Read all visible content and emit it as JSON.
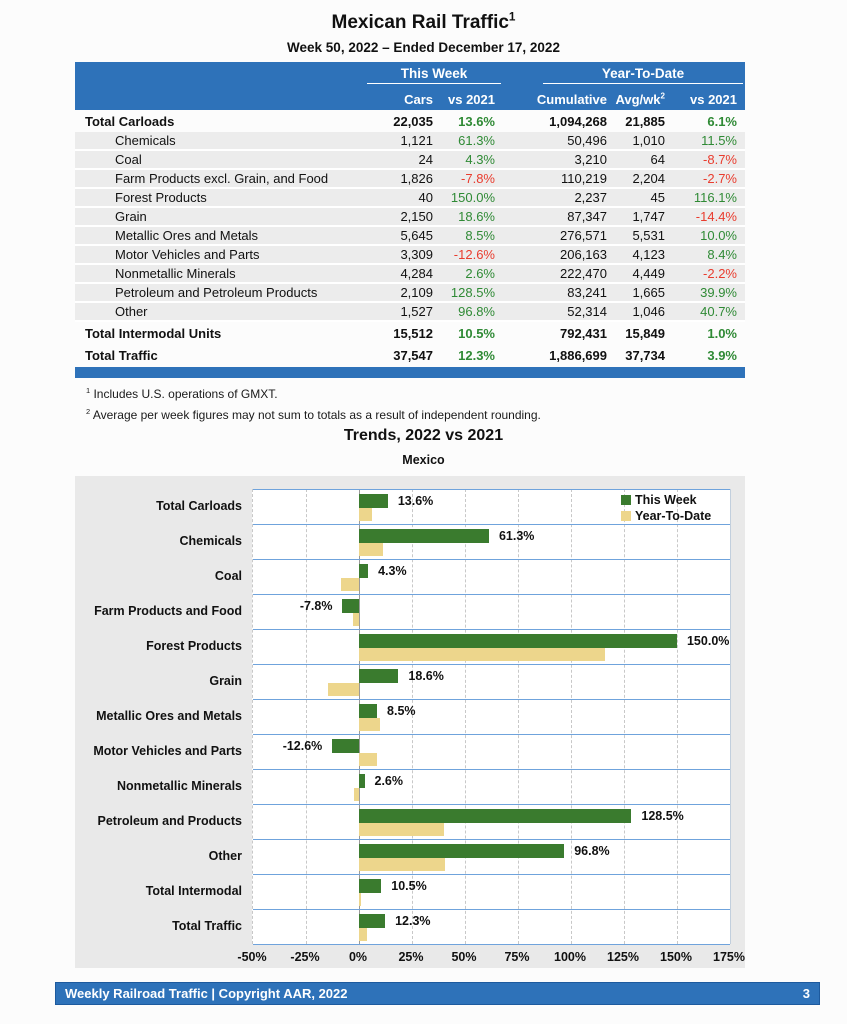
{
  "page": {
    "title": "Mexican Rail Traffic",
    "title_superscript": "1",
    "subtitle": "Week 50, 2022 – Ended December 17, 2022"
  },
  "theme": {
    "blue": "#2E72B9",
    "separator_blue": "#6FA3DC",
    "bar_green": "#3A7B2E",
    "bar_tan": "#EDD68C",
    "green_text": "#2F8A35",
    "red_text": "#E93C2E",
    "row_gray": "#ECECEC",
    "panel_gray": "#E9E9E9"
  },
  "table": {
    "group_headers": {
      "this_week": "This Week",
      "ytd": "Year-To-Date"
    },
    "col_headers": {
      "cars": "Cars",
      "vs2021_week": "vs 2021",
      "cumulative": "Cumulative",
      "avgwk": "Avg/wk",
      "avgwk_superscript": "2",
      "vs2021_ytd": "vs 2021"
    },
    "rows": [
      {
        "label": "Total Carloads",
        "total": true,
        "cars": "22,035",
        "vs_week": "13.6%",
        "cumulative": "1,094,268",
        "avg_wk": "21,885",
        "vs_ytd": "6.1%"
      },
      {
        "label": "Chemicals",
        "total": false,
        "cars": "1,121",
        "vs_week": "61.3%",
        "cumulative": "50,496",
        "avg_wk": "1,010",
        "vs_ytd": "11.5%"
      },
      {
        "label": "Coal",
        "total": false,
        "cars": "24",
        "vs_week": "4.3%",
        "cumulative": "3,210",
        "avg_wk": "64",
        "vs_ytd": "-8.7%"
      },
      {
        "label": "Farm Products excl. Grain, and Food",
        "total": false,
        "cars": "1,826",
        "vs_week": "-7.8%",
        "cumulative": "110,219",
        "avg_wk": "2,204",
        "vs_ytd": "-2.7%"
      },
      {
        "label": "Forest Products",
        "total": false,
        "cars": "40",
        "vs_week": "150.0%",
        "cumulative": "2,237",
        "avg_wk": "45",
        "vs_ytd": "116.1%"
      },
      {
        "label": "Grain",
        "total": false,
        "cars": "2,150",
        "vs_week": "18.6%",
        "cumulative": "87,347",
        "avg_wk": "1,747",
        "vs_ytd": "-14.4%"
      },
      {
        "label": "Metallic Ores and Metals",
        "total": false,
        "cars": "5,645",
        "vs_week": "8.5%",
        "cumulative": "276,571",
        "avg_wk": "5,531",
        "vs_ytd": "10.0%"
      },
      {
        "label": "Motor Vehicles and Parts",
        "total": false,
        "cars": "3,309",
        "vs_week": "-12.6%",
        "cumulative": "206,163",
        "avg_wk": "4,123",
        "vs_ytd": "8.4%"
      },
      {
        "label": "Nonmetallic Minerals",
        "total": false,
        "cars": "4,284",
        "vs_week": "2.6%",
        "cumulative": "222,470",
        "avg_wk": "4,449",
        "vs_ytd": "-2.2%"
      },
      {
        "label": "Petroleum and Petroleum Products",
        "total": false,
        "cars": "2,109",
        "vs_week": "128.5%",
        "cumulative": "83,241",
        "avg_wk": "1,665",
        "vs_ytd": "39.9%"
      },
      {
        "label": "Other",
        "total": false,
        "cars": "1,527",
        "vs_week": "96.8%",
        "cumulative": "52,314",
        "avg_wk": "1,046",
        "vs_ytd": "40.7%"
      },
      {
        "label": "Total Intermodal Units",
        "total": true,
        "cars": "15,512",
        "vs_week": "10.5%",
        "cumulative": "792,431",
        "avg_wk": "15,849",
        "vs_ytd": "1.0%"
      },
      {
        "label": "Total Traffic",
        "total": true,
        "cars": "37,547",
        "vs_week": "12.3%",
        "cumulative": "1,886,699",
        "avg_wk": "37,734",
        "vs_ytd": "3.9%"
      }
    ]
  },
  "footnotes": [
    {
      "sup": "1",
      "text": "Includes U.S. operations of GMXT."
    },
    {
      "sup": "2",
      "text": "Average per week figures may not sum to totals as a result of independent rounding."
    }
  ],
  "chart_data": {
    "type": "bar",
    "orientation": "horizontal",
    "title": "Trends, 2022 vs 2021",
    "subtitle": "Mexico",
    "categories": [
      "Total Carloads",
      "Chemicals",
      "Coal",
      "Farm Products and Food",
      "Forest Products",
      "Grain",
      "Metallic Ores and Metals",
      "Motor Vehicles and Parts",
      "Nonmetallic Minerals",
      "Petroleum and Products",
      "Other",
      "Total Intermodal",
      "Total Traffic"
    ],
    "series": [
      {
        "name": "This Week",
        "color": "#3A7B2E",
        "values": [
          13.6,
          61.3,
          4.3,
          -7.8,
          150.0,
          18.6,
          8.5,
          -12.6,
          2.6,
          128.5,
          96.8,
          10.5,
          12.3
        ]
      },
      {
        "name": "Year-To-Date",
        "color": "#EDD68C",
        "values": [
          6.1,
          11.5,
          -8.7,
          -2.7,
          116.1,
          -14.4,
          10.0,
          8.4,
          -2.2,
          39.9,
          40.7,
          1.0,
          3.9
        ]
      }
    ],
    "bar_labels": [
      "13.6%",
      "61.3%",
      "4.3%",
      "-7.8%",
      "150.0%",
      "18.6%",
      "8.5%",
      "-12.6%",
      "2.6%",
      "128.5%",
      "96.8%",
      "10.5%",
      "12.3%"
    ],
    "xlim": [
      -50,
      175
    ],
    "x_tick_values": [
      -50,
      -25,
      0,
      25,
      50,
      75,
      100,
      125,
      150,
      175
    ],
    "x_tick_labels": [
      "-50%",
      "-25%",
      "0%",
      "25%",
      "50%",
      "75%",
      "100%",
      "125%",
      "150%",
      "175%"
    ],
    "grid": "vertical-dashed",
    "legend_position": "top-right"
  },
  "footer": {
    "text": "Weekly Railroad Traffic | Copyright AAR, 2022",
    "page": "3"
  }
}
